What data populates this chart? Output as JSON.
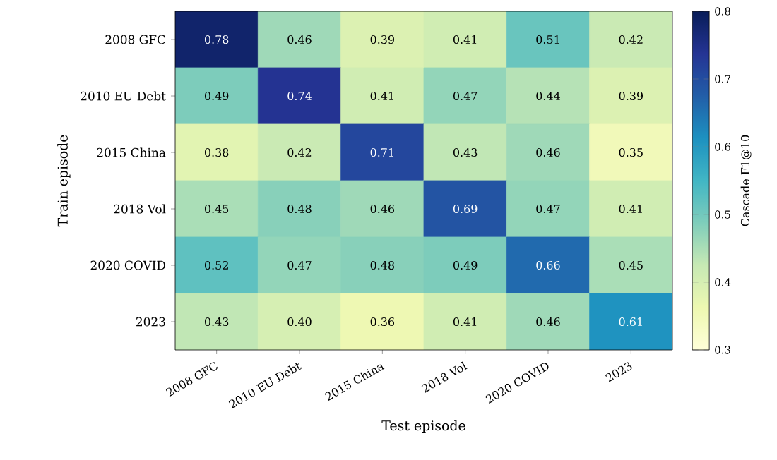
{
  "chart_data": {
    "type": "heatmap",
    "categories": [
      "2008 GFC",
      "2010 EU Debt",
      "2015 China",
      "2018 Vol",
      "2020 COVID",
      "2023"
    ],
    "y_categories": [
      "2008 GFC",
      "2010 EU Debt",
      "2015 China",
      "2018 Vol",
      "2020 COVID",
      "2023"
    ],
    "cells": [
      [
        0.78,
        0.46,
        0.39,
        0.41,
        0.51,
        0.42
      ],
      [
        0.49,
        0.74,
        0.41,
        0.47,
        0.44,
        0.39
      ],
      [
        0.38,
        0.42,
        0.71,
        0.43,
        0.46,
        0.35
      ],
      [
        0.45,
        0.48,
        0.46,
        0.69,
        0.47,
        0.41
      ],
      [
        0.52,
        0.47,
        0.48,
        0.49,
        0.66,
        0.45
      ],
      [
        0.43,
        0.4,
        0.36,
        0.41,
        0.46,
        0.61
      ]
    ],
    "cell_labels": [
      [
        "0.78",
        "0.46",
        "0.39",
        "0.41",
        "0.51",
        "0.42"
      ],
      [
        "0.49",
        "0.74",
        "0.41",
        "0.47",
        "0.44",
        "0.39"
      ],
      [
        "0.38",
        "0.42",
        "0.71",
        "0.43",
        "0.46",
        "0.35"
      ],
      [
        "0.45",
        "0.48",
        "0.46",
        "0.69",
        "0.47",
        "0.41"
      ],
      [
        "0.52",
        "0.47",
        "0.48",
        "0.49",
        "0.66",
        "0.45"
      ],
      [
        "0.43",
        "0.40",
        "0.36",
        "0.41",
        "0.46",
        "0.61"
      ]
    ],
    "clim": [
      0.3,
      0.8
    ],
    "cticks": [
      0.3,
      0.4,
      0.5,
      0.6,
      0.7,
      0.8
    ],
    "xlabel": "Test episode",
    "ylabel": "Train episode",
    "clabel": "Cascade F1@10"
  }
}
